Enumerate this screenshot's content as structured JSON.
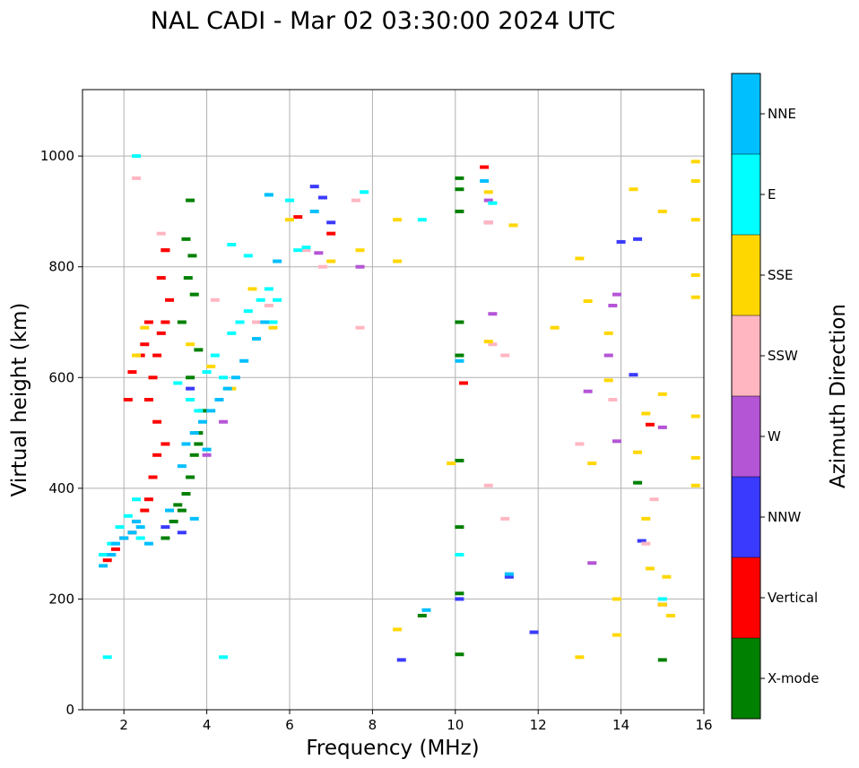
{
  "chart_data": {
    "type": "scatter",
    "title": "NAL CADI - Mar 02 03:30:00 2024 UTC",
    "xlabel": "Frequency (MHz)",
    "ylabel": "Virtual height (km)",
    "xlim": [
      1,
      16
    ],
    "ylim": [
      0,
      1120
    ],
    "xticks": [
      2,
      4,
      6,
      8,
      10,
      12,
      14,
      16
    ],
    "yticks": [
      0,
      200,
      400,
      600,
      800,
      1000
    ],
    "grid": true,
    "colorbar": {
      "label": "Azimuth Direction",
      "categories": [
        {
          "name": "X-mode",
          "color": "#008000"
        },
        {
          "name": "Vertical",
          "color": "#ff0000"
        },
        {
          "name": "NNW",
          "color": "#3a3aff"
        },
        {
          "name": "W",
          "color": "#b455d6"
        },
        {
          "name": "SSW",
          "color": "#ffb6c1"
        },
        {
          "name": "SSE",
          "color": "#ffd700"
        },
        {
          "name": "E",
          "color": "#00ffff"
        },
        {
          "name": "NNE",
          "color": "#00bfff"
        }
      ]
    },
    "series": [
      {
        "name": "X-mode",
        "x": [
          3.0,
          3.2,
          3.4,
          3.5,
          3.6,
          3.7,
          3.8,
          3.9,
          3.3,
          3.6,
          3.8,
          3.4,
          3.7,
          3.55,
          3.65,
          3.5,
          3.6,
          3.8,
          10.1,
          10.1,
          10.1,
          10.1,
          10.1,
          10.1,
          10.1,
          10.1,
          15.0,
          9.2,
          14.4,
          10.1
        ],
        "y": [
          310,
          340,
          360,
          390,
          420,
          460,
          500,
          540,
          370,
          600,
          650,
          700,
          750,
          780,
          820,
          850,
          920,
          480,
          960,
          940,
          900,
          700,
          640,
          450,
          330,
          210,
          90,
          170,
          410,
          100
        ]
      },
      {
        "name": "Vertical",
        "x": [
          1.6,
          1.8,
          2.0,
          2.2,
          2.3,
          2.5,
          2.6,
          2.7,
          2.8,
          2.6,
          2.7,
          2.8,
          2.9,
          3.0,
          3.1,
          2.9,
          3.0,
          2.5,
          2.1,
          2.2,
          2.4,
          2.6,
          2.8,
          3.0,
          6.2,
          7.0,
          10.7,
          10.2,
          14.7,
          15.0,
          3.0
        ],
        "y": [
          270,
          290,
          310,
          320,
          340,
          360,
          380,
          420,
          460,
          560,
          600,
          640,
          680,
          700,
          740,
          780,
          830,
          660,
          560,
          610,
          640,
          700,
          520,
          480,
          890,
          860,
          980,
          590,
          515,
          190,
          830
        ]
      },
      {
        "name": "NNW",
        "x": [
          3.0,
          3.4,
          3.6,
          6.6,
          6.8,
          7.0,
          14.0,
          14.4,
          11.9,
          10.1,
          11.3,
          8.7,
          14.3,
          14.5
        ],
        "y": [
          330,
          320,
          580,
          945,
          925,
          880,
          845,
          850,
          140,
          200,
          240,
          90,
          605,
          305
        ]
      },
      {
        "name": "W",
        "x": [
          4.0,
          4.4,
          6.7,
          7.7,
          10.8,
          10.9,
          13.7,
          13.9,
          13.9,
          13.2,
          13.8,
          13.3,
          15.0,
          10.8
        ],
        "y": [
          460,
          520,
          825,
          800,
          880,
          715,
          640,
          750,
          485,
          575,
          730,
          265,
          510,
          920
        ]
      },
      {
        "name": "SSW",
        "x": [
          2.3,
          2.9,
          4.2,
          5.2,
          5.5,
          6.4,
          6.8,
          7.6,
          10.8,
          10.9,
          11.2,
          13.0,
          13.8,
          14.8,
          14.6,
          10.8,
          11.2,
          7.7
        ],
        "y": [
          960,
          860,
          740,
          700,
          730,
          830,
          800,
          920,
          405,
          660,
          345,
          480,
          560,
          380,
          300,
          880,
          640,
          690
        ]
      },
      {
        "name": "SSE",
        "x": [
          2.3,
          2.5,
          3.6,
          4.1,
          4.6,
          5.1,
          5.6,
          6.0,
          7.0,
          7.7,
          8.6,
          8.6,
          9.9,
          10.8,
          10.8,
          11.4,
          12.4,
          13.0,
          13.2,
          13.3,
          13.7,
          13.7,
          13.9,
          14.3,
          14.4,
          14.6,
          14.6,
          14.7,
          15.0,
          15.0,
          15.1,
          15.2,
          15.8,
          15.8,
          15.8,
          15.8,
          15.8,
          15.8,
          15.8,
          15.8,
          13.0,
          13.9,
          8.6,
          15.0
        ],
        "y": [
          640,
          690,
          660,
          620,
          580,
          760,
          690,
          885,
          810,
          830,
          885,
          810,
          445,
          935,
          665,
          875,
          690,
          815,
          738,
          445,
          680,
          595,
          200,
          940,
          465,
          345,
          535,
          255,
          900,
          570,
          240,
          170,
          990,
          955,
          885,
          785,
          745,
          530,
          455,
          405,
          95,
          135,
          145,
          190
        ]
      },
      {
        "name": "E",
        "x": [
          1.5,
          1.7,
          1.9,
          2.1,
          2.3,
          2.4,
          3.3,
          3.6,
          3.8,
          4.0,
          4.2,
          4.4,
          4.6,
          4.8,
          5.0,
          5.3,
          5.5,
          5.6,
          5.7,
          5.5,
          6.0,
          6.2,
          7.8,
          9.2,
          10.1,
          10.9,
          15.0,
          4.6,
          5.0,
          2.3,
          4.4,
          1.6,
          6.4
        ],
        "y": [
          280,
          300,
          330,
          350,
          380,
          310,
          590,
          560,
          540,
          610,
          640,
          600,
          680,
          700,
          720,
          740,
          760,
          700,
          740,
          930,
          920,
          830,
          935,
          885,
          280,
          915,
          200,
          840,
          820,
          1000,
          95,
          95,
          835
        ]
      },
      {
        "name": "NNE",
        "x": [
          1.5,
          1.7,
          1.8,
          2.0,
          2.2,
          2.3,
          2.4,
          2.6,
          3.1,
          3.4,
          3.5,
          3.7,
          3.9,
          4.1,
          4.3,
          4.5,
          4.7,
          4.9,
          5.2,
          5.4,
          4.0,
          5.5,
          6.6,
          9.3,
          10.1,
          10.7,
          11.3,
          5.7,
          3.7
        ],
        "y": [
          260,
          280,
          300,
          310,
          320,
          340,
          330,
          300,
          360,
          440,
          480,
          500,
          520,
          540,
          560,
          580,
          600,
          630,
          670,
          700,
          470,
          930,
          900,
          180,
          630,
          955,
          245,
          810,
          345
        ]
      }
    ]
  }
}
